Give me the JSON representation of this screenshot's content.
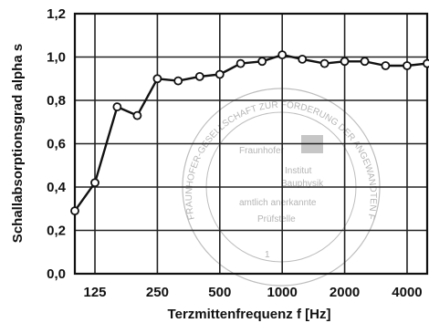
{
  "chart_data": {
    "type": "line",
    "xlabel": "Terzmittenfrequenz f [Hz]",
    "ylabel": "Schallabsorptionsgrad alpha s",
    "x_scale": "log",
    "ylim": [
      0,
      1.2
    ],
    "y_ticks": [
      "0,0",
      "0,2",
      "0,4",
      "0,6",
      "0,8",
      "1,0",
      "1,2"
    ],
    "x_ticks": [
      {
        "value": 125,
        "label": "125"
      },
      {
        "value": 250,
        "label": "250"
      },
      {
        "value": 500,
        "label": "500"
      },
      {
        "value": 1000,
        "label": "1000"
      },
      {
        "value": 2000,
        "label": "2000"
      },
      {
        "value": 4000,
        "label": "4000"
      }
    ],
    "grid": true,
    "x": [
      100,
      125,
      160,
      200,
      250,
      315,
      400,
      500,
      630,
      800,
      1000,
      1250,
      1600,
      2000,
      2500,
      3150,
      4000,
      5000
    ],
    "series": [
      {
        "values": [
          0.29,
          0.42,
          0.77,
          0.73,
          0.9,
          0.89,
          0.91,
          0.92,
          0.97,
          0.98,
          1.01,
          0.99,
          0.97,
          0.98,
          0.98,
          0.96,
          0.96,
          0.97
        ]
      }
    ]
  },
  "stamp": {
    "ring_text": "FRAUNHOFER-GESELLSCHAFT ZUR FÖRDERUNG DER ANGEWANDTEN FORSCHUNG E.V.",
    "line1": "Fraunhofer",
    "line2": "Institut",
    "line3": "Bauphysik",
    "line4": "amtlich anerkannte",
    "line5": "Prüfstelle",
    "number": "1"
  }
}
